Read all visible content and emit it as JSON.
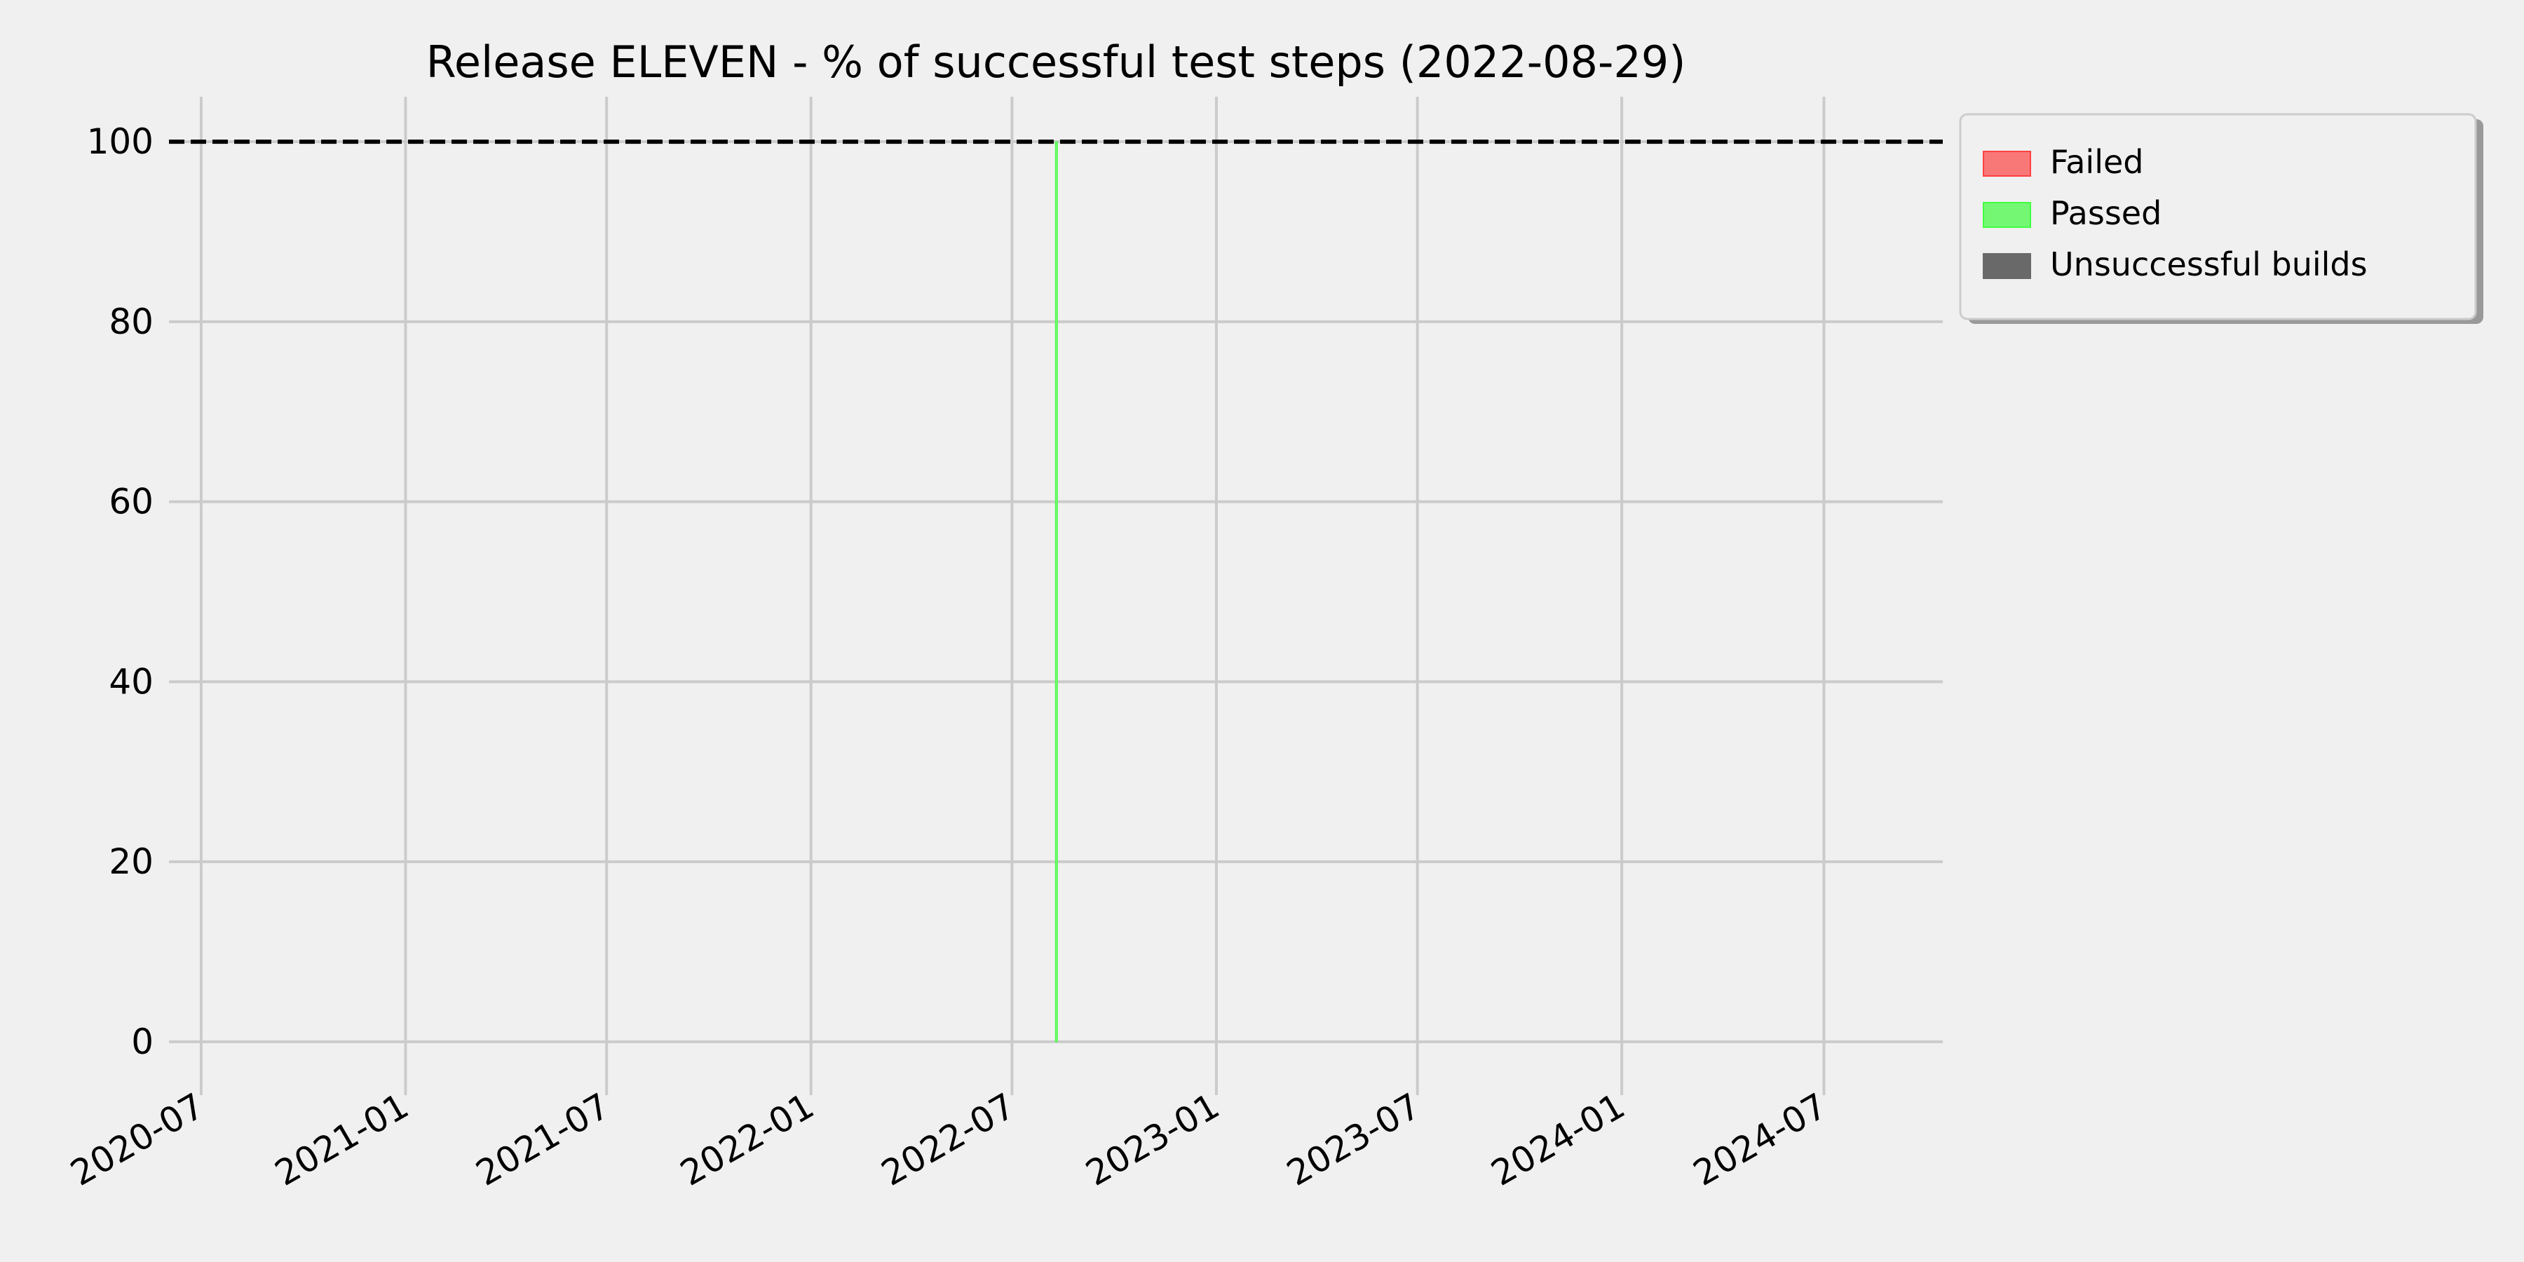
{
  "chart_data": {
    "type": "bar",
    "title": "Release ELEVEN - % of successful test steps (2022-08-29)",
    "xlabel": "",
    "ylabel": "",
    "xlim": [
      "2020-06-02",
      "2024-10-16"
    ],
    "ylim": [
      -5,
      105
    ],
    "x_ticks": [
      "2020-07",
      "2021-01",
      "2021-07",
      "2022-01",
      "2022-07",
      "2023-01",
      "2023-07",
      "2024-01",
      "2024-07"
    ],
    "y_ticks": [
      0,
      20,
      40,
      60,
      80,
      100
    ],
    "grid": true,
    "reference_line": {
      "y": 100,
      "style": "dashed",
      "color": "#000000"
    },
    "series": [
      {
        "name": "Failed",
        "color": "#f87878",
        "edge": "#ff4040",
        "points": []
      },
      {
        "name": "Passed",
        "color": "#74f874",
        "edge": "#40ff40",
        "points": [
          {
            "x": "2022-08-10",
            "y": 100
          }
        ]
      },
      {
        "name": "Unsuccessful builds",
        "color": "#696969",
        "edge": "#696969",
        "points": []
      }
    ],
    "legend": {
      "placement": "outside-top-right"
    }
  },
  "colors": {
    "background": "#f0f0f0",
    "grid": "#cbcbcb"
  }
}
